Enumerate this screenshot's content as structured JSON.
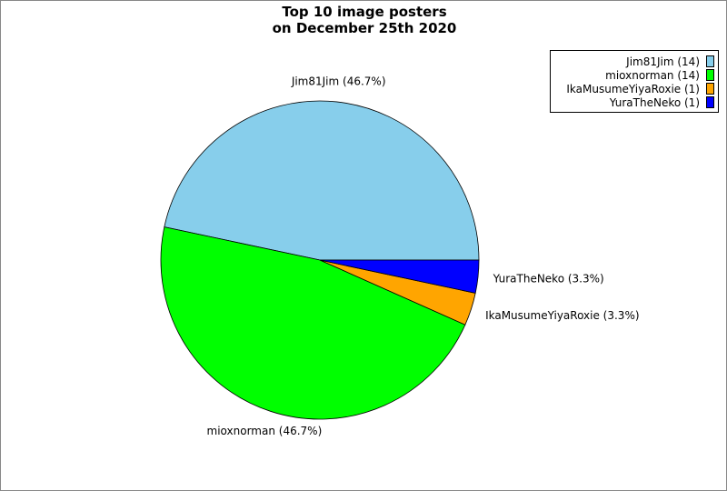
{
  "chart_data": {
    "type": "pie",
    "title_lines": [
      "Top 10 image posters",
      "on December 25th 2020"
    ],
    "slices": [
      {
        "name": "Jim81Jim",
        "value": 14,
        "label": "Jim81Jim (46.7%)",
        "legend": "Jim81Jim (14)",
        "color": "#87ceeb"
      },
      {
        "name": "mioxnorman",
        "value": 14,
        "label": "mioxnorman (46.7%)",
        "legend": "mioxnorman (14)",
        "color": "#00ff00"
      },
      {
        "name": "IkaMusumeYiyaRoxie",
        "value": 1,
        "label": "IkaMusumeYiyaRoxie (3.3%)",
        "legend": "IkaMusumeYiyaRoxie (1)",
        "color": "#ffa500"
      },
      {
        "name": "YuraTheNeko",
        "value": 1,
        "label": "YuraTheNeko (3.3%)",
        "legend": "YuraTheNeko (1)",
        "color": "#0000ff"
      }
    ],
    "start_angle_deg": 0,
    "direction": "counterclockwise",
    "legend_position": "top-right"
  }
}
